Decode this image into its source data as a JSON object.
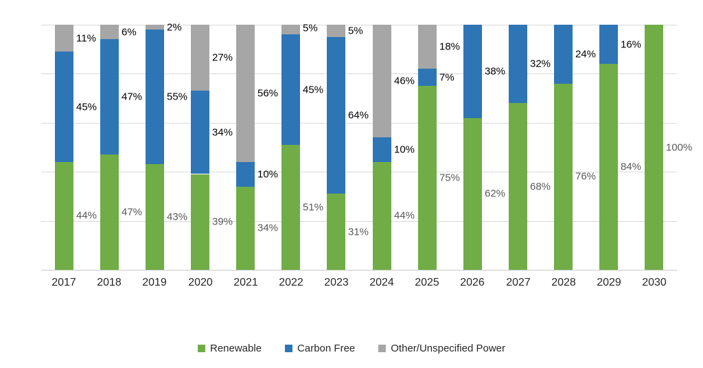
{
  "chart_data": {
    "type": "bar",
    "stacked": true,
    "title": "",
    "xlabel": "",
    "ylabel": "",
    "ylim": [
      0,
      100
    ],
    "grid": true,
    "gridlines_pct": [
      0,
      20,
      40,
      60,
      80,
      100
    ],
    "legend_position": "bottom",
    "data_label_suffix": "%",
    "categories": [
      "2017",
      "2018",
      "2019",
      "2020",
      "2021",
      "2022",
      "2023",
      "2024",
      "2025",
      "2026",
      "2027",
      "2028",
      "2029",
      "2030"
    ],
    "series": [
      {
        "name": "Renewable",
        "color": "#70AD47",
        "label_color": "#595959",
        "values": [
          44,
          47,
          43,
          39,
          34,
          51,
          31,
          44,
          75,
          62,
          68,
          76,
          84,
          100
        ]
      },
      {
        "name": "Carbon Free",
        "color": "#2E75B6",
        "label_color": "#000000",
        "values": [
          45,
          47,
          55,
          34,
          10,
          45,
          64,
          10,
          7,
          38,
          32,
          24,
          16,
          0
        ]
      },
      {
        "name": "Other/Unspecified Power",
        "color": "#A6A6A6",
        "label_color": "#000000",
        "values": [
          11,
          6,
          2,
          27,
          56,
          5,
          5,
          46,
          18,
          0,
          0,
          0,
          0,
          0
        ]
      }
    ],
    "colors": {
      "gridline": "#d9d9d9",
      "axis_line": "#c9c9c9",
      "year_label": "#262626",
      "legend_text": "#262626"
    }
  }
}
